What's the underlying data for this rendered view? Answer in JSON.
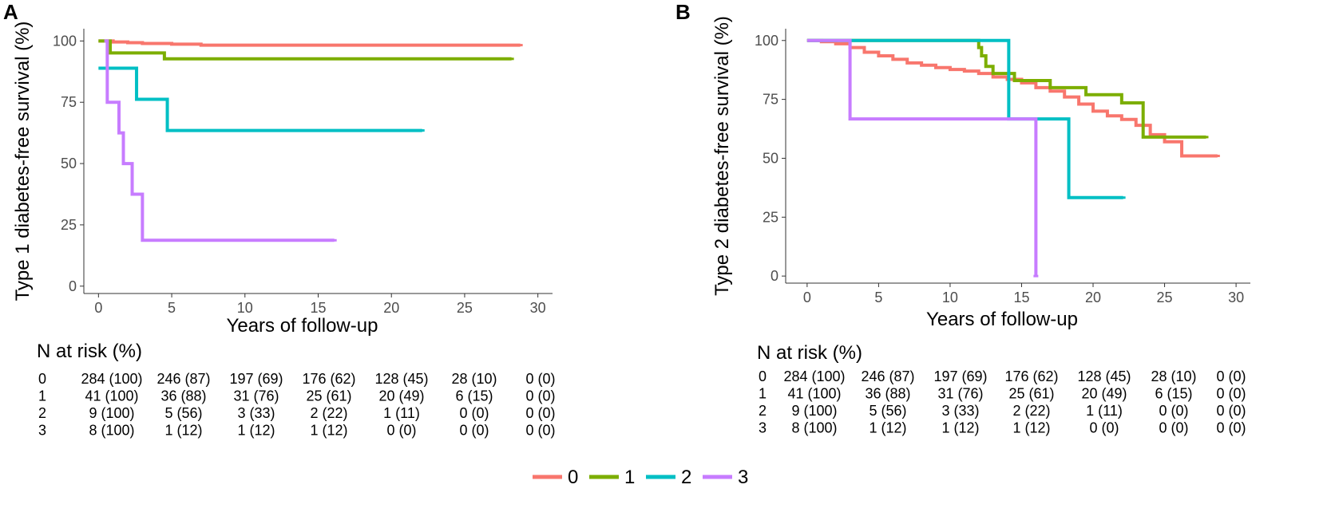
{
  "colors": {
    "0": "#F8766D",
    "1": "#7CAE00",
    "2": "#00BFC4",
    "3": "#C77CFF"
  },
  "legend": {
    "labels": [
      "0",
      "1",
      "2",
      "3"
    ]
  },
  "chart_data": [
    {
      "panel": "A",
      "type": "line",
      "ylabel": "Type 1 diabetes-free survival (%)",
      "xlabel": "Years of follow-up",
      "xlim": [
        -1,
        31
      ],
      "ylim": [
        -3,
        105
      ],
      "xticks": [
        0,
        5,
        10,
        15,
        20,
        25,
        30
      ],
      "yticks": [
        0,
        25,
        50,
        75,
        100
      ],
      "xtick_labels": [
        "0",
        "5",
        "10",
        "15",
        "20",
        "25",
        "30"
      ],
      "ytick_labels": [
        "0",
        "25",
        "50",
        "75",
        "100"
      ],
      "series": [
        {
          "name": "0",
          "x": [
            0,
            0.4,
            1,
            2,
            3,
            5,
            7,
            9,
            12,
            28.8
          ],
          "y": [
            100,
            100,
            99.6,
            99.3,
            99,
            98.7,
            98.3,
            98.3,
            98.3,
            98.3
          ]
        },
        {
          "name": "1",
          "x": [
            0,
            0.8,
            4.5,
            28.2
          ],
          "y": [
            100,
            95.1,
            92.7,
            92.7
          ]
        },
        {
          "name": "2",
          "x": [
            0,
            2.6,
            4.7,
            22.1
          ],
          "y": [
            88.9,
            76.2,
            63.5,
            63.5
          ]
        },
        {
          "name": "3",
          "x": [
            0.4,
            0.6,
            1.4,
            1.7,
            2.3,
            3.0,
            16.1
          ],
          "y": [
            100,
            75,
            62.5,
            50,
            37.5,
            18.7,
            18.7
          ]
        }
      ],
      "risk_table": {
        "title": "N at risk (%)",
        "groups": [
          "0",
          "1",
          "2",
          "3"
        ],
        "rows": [
          [
            "284 (100)",
            "246 (87)",
            "197 (69)",
            "176 (62)",
            "128 (45)",
            "28 (10)",
            "0 (0)"
          ],
          [
            "41 (100)",
            "36 (88)",
            "31 (76)",
            "25 (61)",
            "20 (49)",
            "6 (15)",
            "0 (0)"
          ],
          [
            "9 (100)",
            "5 (56)",
            "3 (33)",
            "2 (22)",
            "1 (11)",
            "0 (0)",
            "0 (0)"
          ],
          [
            "8 (100)",
            "1 (12)",
            "1 (12)",
            "1 (12)",
            "0 (0)",
            "0 (0)",
            "0 (0)"
          ]
        ]
      }
    },
    {
      "panel": "B",
      "type": "line",
      "ylabel": "Type 2 diabetes-free survival (%)",
      "xlabel": "Years of follow-up",
      "xlim": [
        -1.5,
        31
      ],
      "ylim": [
        -3,
        105
      ],
      "xticks": [
        0,
        5,
        10,
        15,
        20,
        25,
        30
      ],
      "yticks": [
        0,
        25,
        50,
        75,
        100
      ],
      "xtick_labels": [
        "0",
        "5",
        "10",
        "15",
        "20",
        "25",
        "30"
      ],
      "ytick_labels": [
        "0",
        "25",
        "50",
        "75",
        "100"
      ],
      "series": [
        {
          "name": "0",
          "x": [
            0,
            1,
            2,
            3,
            4,
            5,
            6,
            7,
            8,
            9,
            10,
            11,
            12,
            13,
            14,
            15,
            16,
            17,
            18,
            19,
            20,
            21,
            22,
            23,
            24,
            25,
            26.2,
            28.7
          ],
          "y": [
            100,
            99.5,
            98.6,
            97,
            95,
            93.5,
            92,
            90.5,
            89.5,
            88.5,
            87.7,
            87,
            86,
            84.5,
            83.5,
            82,
            80,
            78.5,
            76,
            73,
            70,
            68,
            66.5,
            64,
            60,
            57,
            51,
            51
          ]
        },
        {
          "name": "1",
          "x": [
            0,
            11.8,
            12,
            12.2,
            12.5,
            13,
            14.5,
            17,
            19.5,
            22,
            23.5,
            27.9
          ],
          "y": [
            100,
            100,
            97,
            93.5,
            89,
            86,
            83,
            80,
            77,
            73.5,
            59,
            59
          ]
        },
        {
          "name": "2",
          "x": [
            0,
            14.1,
            18.3,
            22.1
          ],
          "y": [
            100,
            66.7,
            33.3,
            33.3
          ]
        },
        {
          "name": "3",
          "x": [
            0,
            3.0,
            16.0
          ],
          "y": [
            100,
            66.7,
            0
          ]
        }
      ],
      "risk_table": {
        "title": "N at risk (%)",
        "groups": [
          "0",
          "1",
          "2",
          "3"
        ],
        "rows": [
          [
            "284 (100)",
            "246 (87)",
            "197 (69)",
            "176 (62)",
            "128 (45)",
            "28 (10)",
            "0 (0)"
          ],
          [
            "41 (100)",
            "36 (88)",
            "31 (76)",
            "25 (61)",
            "20 (49)",
            "6 (15)",
            "0 (0)"
          ],
          [
            "9 (100)",
            "5 (56)",
            "3 (33)",
            "2 (22)",
            "1 (11)",
            "0 (0)",
            "0 (0)"
          ],
          [
            "8 (100)",
            "1 (12)",
            "1 (12)",
            "1 (12)",
            "0 (0)",
            "0 (0)",
            "0 (0)"
          ]
        ]
      }
    }
  ]
}
